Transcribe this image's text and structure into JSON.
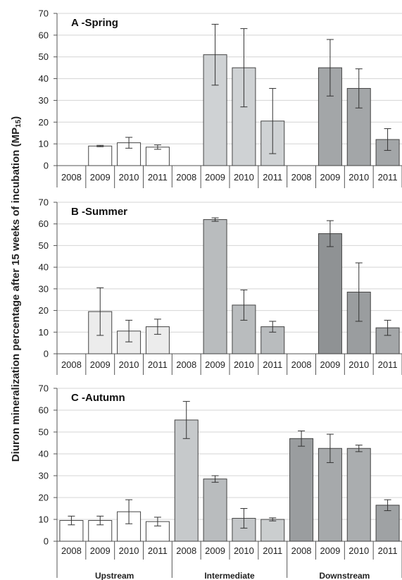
{
  "y_axis_label": "Diuron mineralization percentage after 15 weeks of incubation (MP",
  "y_axis_label_sub": "15",
  "y_axis_label_end": ")",
  "groups": [
    "Upstream",
    "Intermediate",
    "Downstream"
  ],
  "colors": {
    "Upstream": [
      "#ffffff",
      "#ffffff",
      "#ffffff"
    ],
    "Intermediate": [
      "#cfd2d4",
      "#c3c6c8",
      "#bfc2c4"
    ],
    "Downstream": [
      "#a6a9ab",
      "#999c9e",
      "#a2a5a7"
    ],
    "grid": "#d4d4d4",
    "axis": "#555555",
    "bar_stroke": "#444444"
  },
  "chart_data": [
    {
      "type": "bar",
      "title": "A -Spring",
      "categories": [
        "2008",
        "2009",
        "2010",
        "2011",
        "2008",
        "2009",
        "2010",
        "2011",
        "2008",
        "2009",
        "2010",
        "2011"
      ],
      "values": [
        null,
        9,
        10.5,
        8.5,
        null,
        51,
        45,
        20.5,
        null,
        45,
        35.5,
        12
      ],
      "errors": [
        null,
        0.3,
        2.5,
        1,
        null,
        14,
        18,
        15,
        null,
        13,
        9,
        5
      ],
      "fills": [
        "#ffffff",
        "#ffffff",
        "#ffffff",
        "#ffffff",
        "#cfd2d4",
        "#cfd2d4",
        "#cfd2d4",
        "#cfd2d4",
        "#a3a6a8",
        "#a3a6a8",
        "#a3a6a8",
        "#a3a6a8"
      ],
      "ylim": [
        0,
        70
      ],
      "yticks": [
        0,
        10,
        20,
        30,
        40,
        50,
        60,
        70
      ],
      "grid": true
    },
    {
      "type": "bar",
      "title": "B -Summer",
      "categories": [
        "2008",
        "2009",
        "2010",
        "2011",
        "2008",
        "2009",
        "2010",
        "2011",
        "2008",
        "2009",
        "2010",
        "2011"
      ],
      "values": [
        null,
        19.5,
        10.5,
        12.5,
        null,
        62,
        22.5,
        12.5,
        null,
        55.5,
        28.5,
        12
      ],
      "errors": [
        null,
        11,
        5,
        3.5,
        null,
        0.8,
        7,
        2.5,
        null,
        6,
        13.5,
        3.5
      ],
      "fills": [
        "#ececec",
        "#ececec",
        "#ececec",
        "#ececec",
        "#b1b4b6",
        "#b9bcbe",
        "#b9bcbe",
        "#b9bcbe",
        "#8f9294",
        "#8f9294",
        "#9a9d9f",
        "#a3a6a8"
      ],
      "ylim": [
        0,
        70
      ],
      "yticks": [
        0,
        10,
        20,
        30,
        40,
        50,
        60,
        70
      ],
      "grid": true
    },
    {
      "type": "bar",
      "title": "C -Autumn",
      "categories": [
        "2008",
        "2009",
        "2010",
        "2011",
        "2008",
        "2009",
        "2010",
        "2011",
        "2008",
        "2009",
        "2010",
        "2011"
      ],
      "values": [
        9.5,
        9.5,
        13.5,
        9,
        55.5,
        28.5,
        10.5,
        10,
        47,
        42.5,
        42.5,
        16.5
      ],
      "errors": [
        2,
        2,
        5.5,
        2,
        8.5,
        1.5,
        4.5,
        0.7,
        3.5,
        6.5,
        1.5,
        2.5
      ],
      "fills": [
        "#ffffff",
        "#ffffff",
        "#ffffff",
        "#ffffff",
        "#c6c9cb",
        "#b9bcbe",
        "#c3c6c8",
        "#cbcecf",
        "#9a9d9f",
        "#a6a9ab",
        "#aaadaf",
        "#9fa2a4"
      ],
      "ylim": [
        0,
        70
      ],
      "yticks": [
        0,
        10,
        20,
        30,
        40,
        50,
        60,
        70
      ],
      "grid": true
    }
  ]
}
